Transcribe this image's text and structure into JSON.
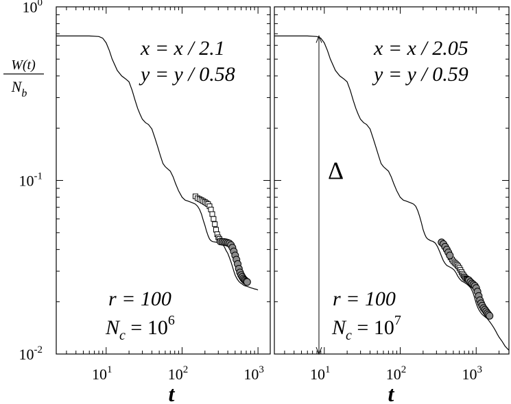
{
  "chart_data": [
    {
      "type": "line",
      "panel": "left",
      "xscale": "log",
      "yscale": "log",
      "xlim": [
        2.2,
        1450
      ],
      "ylim": [
        0.01,
        1
      ],
      "xlabel": "t",
      "ylabel_num": "W(t)",
      "ylabel_den_base": "N",
      "ylabel_den_sub": "b",
      "xticks": [
        {
          "v": 10,
          "base": "10",
          "exp": "1"
        },
        {
          "v": 100,
          "base": "10",
          "exp": "2"
        },
        {
          "v": 1000,
          "base": "10",
          "exp": "3"
        }
      ],
      "yticks": [
        {
          "v": 1,
          "base": "10",
          "exp": "0"
        },
        {
          "v": 0.1,
          "base": "10",
          "exp": "-1"
        },
        {
          "v": 0.01,
          "base": "10",
          "exp": "-2"
        }
      ],
      "annotations": {
        "scale_x": "x = x / 2.1",
        "scale_y": "y = y / 0.58",
        "r_text": "r = 100",
        "nc_base": "N",
        "nc_sub": "c",
        "nc_eq": " = 10",
        "nc_exp": "6"
      },
      "series": [
        {
          "style": "line",
          "x": [
            2.2,
            6,
            8,
            9,
            10,
            11,
            12,
            14,
            16,
            18,
            20,
            22,
            24,
            26,
            28,
            30,
            33,
            36,
            40,
            44,
            48,
            52,
            56,
            60,
            64,
            70,
            76,
            82,
            90,
            100,
            110,
            120,
            130,
            140,
            150,
            160,
            170,
            180,
            190,
            200,
            210,
            220,
            230,
            240,
            250,
            260,
            270,
            280,
            290,
            300,
            320,
            340,
            360,
            380,
            400,
            420,
            440,
            460,
            480,
            500,
            520,
            540,
            560,
            580,
            600,
            620,
            640,
            660,
            680,
            700,
            720,
            740,
            760,
            800,
            850,
            900,
            950,
            1000
          ],
          "y": [
            0.68,
            0.68,
            0.675,
            0.66,
            0.62,
            0.56,
            0.5,
            0.43,
            0.4,
            0.385,
            0.37,
            0.33,
            0.29,
            0.26,
            0.24,
            0.225,
            0.215,
            0.21,
            0.198,
            0.175,
            0.155,
            0.138,
            0.125,
            0.12,
            0.117,
            0.113,
            0.105,
            0.096,
            0.087,
            0.08,
            0.077,
            0.076,
            0.075,
            0.074,
            0.073,
            0.071,
            0.068,
            0.064,
            0.059,
            0.055,
            0.051,
            0.048,
            0.046,
            0.045,
            0.0445,
            0.0443,
            0.0442,
            0.0441,
            0.044,
            0.0437,
            0.0434,
            0.0428,
            0.0415,
            0.0395,
            0.038,
            0.036,
            0.034,
            0.032,
            0.03,
            0.0285,
            0.0275,
            0.0268,
            0.0262,
            0.0258,
            0.0255,
            0.0253,
            0.025,
            0.0248,
            0.0247,
            0.0246,
            0.0245,
            0.0244,
            0.0243,
            0.0241,
            0.0239,
            0.0237,
            0.0236,
            0.0234
          ]
        },
        {
          "style": "squares",
          "x": [
            150,
            160,
            170,
            180,
            190,
            200,
            210,
            220,
            230,
            240,
            250,
            260,
            270,
            280,
            290,
            300,
            310
          ],
          "y": [
            0.081,
            0.079,
            0.078,
            0.077,
            0.076,
            0.075,
            0.074,
            0.073,
            0.071,
            0.068,
            0.064,
            0.06,
            0.056,
            0.052,
            0.049,
            0.047,
            0.046
          ]
        },
        {
          "style": "circles",
          "x": [
            320,
            340,
            360,
            380,
            400,
            420,
            440,
            460,
            480,
            500,
            520,
            540,
            560,
            580,
            600,
            620,
            640,
            660,
            680,
            700,
            720
          ],
          "y": [
            0.0445,
            0.0443,
            0.0442,
            0.044,
            0.0437,
            0.0433,
            0.0425,
            0.041,
            0.039,
            0.037,
            0.035,
            0.033,
            0.031,
            0.0295,
            0.0285,
            0.0278,
            0.0272,
            0.0268,
            0.0265,
            0.0262,
            0.026
          ]
        }
      ]
    },
    {
      "type": "line",
      "panel": "right",
      "xscale": "log",
      "yscale": "log",
      "xlim": [
        2.2,
        2700
      ],
      "ylim": [
        0.01,
        1
      ],
      "xlabel": "t",
      "xticks": [
        {
          "v": 10,
          "base": "10",
          "exp": "1"
        },
        {
          "v": 100,
          "base": "10",
          "exp": "2"
        },
        {
          "v": 1000,
          "base": "10",
          "exp": "3"
        }
      ],
      "annotations": {
        "scale_x": "x = x / 2.05",
        "scale_y": "y = y / 0.59",
        "delta": "Δ",
        "r_text": "r = 100",
        "nc_base": "N",
        "nc_sub": "c",
        "nc_eq": " = 10",
        "nc_exp": "7"
      },
      "delta_arrow": {
        "x": 8.5,
        "y_top": 0.68,
        "y_bottom": 0.01
      },
      "series": [
        {
          "style": "line",
          "x": [
            2.2,
            6,
            8,
            9,
            10,
            11,
            12,
            14,
            16,
            18,
            20,
            22,
            24,
            26,
            28,
            30,
            33,
            36,
            40,
            44,
            48,
            52,
            56,
            60,
            64,
            70,
            76,
            82,
            90,
            100,
            110,
            120,
            130,
            140,
            150,
            160,
            170,
            180,
            190,
            200,
            210,
            220,
            230,
            240,
            250,
            270,
            290,
            310,
            330,
            350,
            370,
            390,
            410,
            430,
            450,
            480,
            510,
            540,
            570,
            600,
            640,
            680,
            720,
            760,
            800,
            850,
            900,
            950,
            1000,
            1050,
            1100,
            1150,
            1200,
            1300,
            1400,
            1500,
            1600,
            1700,
            1800,
            1900,
            2000,
            2200,
            2400,
            2700
          ],
          "y": [
            0.68,
            0.68,
            0.675,
            0.66,
            0.62,
            0.56,
            0.5,
            0.43,
            0.4,
            0.385,
            0.37,
            0.33,
            0.29,
            0.26,
            0.24,
            0.225,
            0.215,
            0.21,
            0.198,
            0.175,
            0.155,
            0.138,
            0.125,
            0.12,
            0.117,
            0.113,
            0.105,
            0.096,
            0.087,
            0.08,
            0.077,
            0.076,
            0.075,
            0.074,
            0.073,
            0.071,
            0.067,
            0.062,
            0.057,
            0.052,
            0.049,
            0.047,
            0.046,
            0.0455,
            0.045,
            0.0445,
            0.0435,
            0.0415,
            0.039,
            0.0365,
            0.0345,
            0.0332,
            0.0324,
            0.032,
            0.0317,
            0.0312,
            0.0305,
            0.0295,
            0.0282,
            0.0272,
            0.0264,
            0.026,
            0.0256,
            0.0252,
            0.0247,
            0.024,
            0.0228,
            0.0212,
            0.0196,
            0.0185,
            0.0178,
            0.0173,
            0.0169,
            0.0164,
            0.016,
            0.0154,
            0.0148,
            0.0142,
            0.0136,
            0.013,
            0.0125,
            0.0118,
            0.0111,
            0.0105
          ]
        },
        {
          "style": "squares",
          "x": [
            380,
            400,
            420,
            440,
            460,
            480,
            500,
            520,
            540,
            560,
            580,
            600,
            620,
            640,
            660,
            680,
            700,
            720,
            740,
            760,
            780
          ],
          "y": [
            0.042,
            0.0405,
            0.039,
            0.0375,
            0.036,
            0.035,
            0.0342,
            0.0336,
            0.0331,
            0.0326,
            0.032,
            0.0313,
            0.0305,
            0.0297,
            0.029,
            0.0284,
            0.0279,
            0.0275,
            0.0272,
            0.027,
            0.0268
          ]
        },
        {
          "style": "circles",
          "x": [
            350,
            370,
            390,
            410,
            430,
            450,
            800,
            840,
            880,
            920,
            960,
            1000,
            1040,
            1080,
            1120,
            1160,
            1200,
            1250,
            1300,
            1350,
            1400,
            1450,
            1500
          ],
          "y": [
            0.044,
            0.043,
            0.0415,
            0.04,
            0.0385,
            0.037,
            0.0266,
            0.026,
            0.0255,
            0.0251,
            0.0247,
            0.024,
            0.0229,
            0.0216,
            0.0204,
            0.0196,
            0.019,
            0.0184,
            0.018,
            0.0176,
            0.0172,
            0.0169,
            0.0166
          ]
        }
      ]
    }
  ]
}
